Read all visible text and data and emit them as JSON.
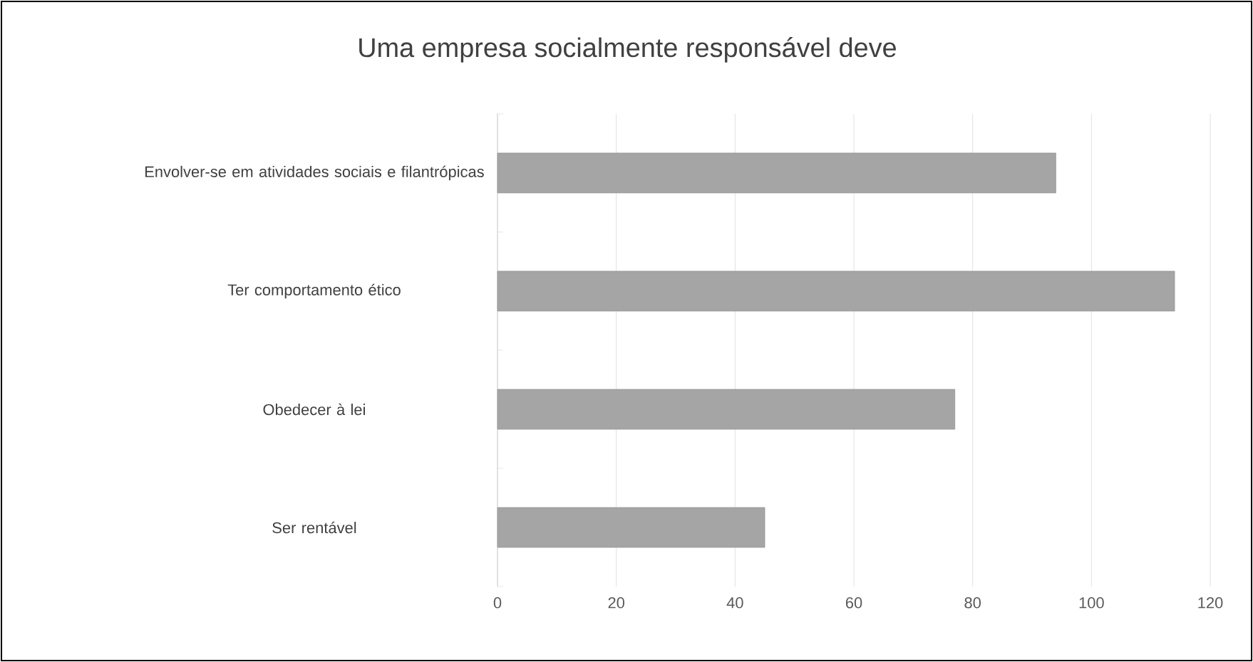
{
  "chart_data": {
    "type": "bar",
    "orientation": "horizontal",
    "title": "Uma empresa socialmente responsável deve",
    "categories": [
      "Envolver-se em atividades sociais e filantrópicas",
      "Ter comportamento ético",
      "Obedecer à lei",
      "Ser rentável"
    ],
    "values": [
      94,
      114,
      77,
      45
    ],
    "color": "#a5a5a5",
    "xlim": [
      0,
      120
    ],
    "xticks": [
      0,
      20,
      40,
      60,
      80,
      100,
      120
    ],
    "grid": "x"
  }
}
